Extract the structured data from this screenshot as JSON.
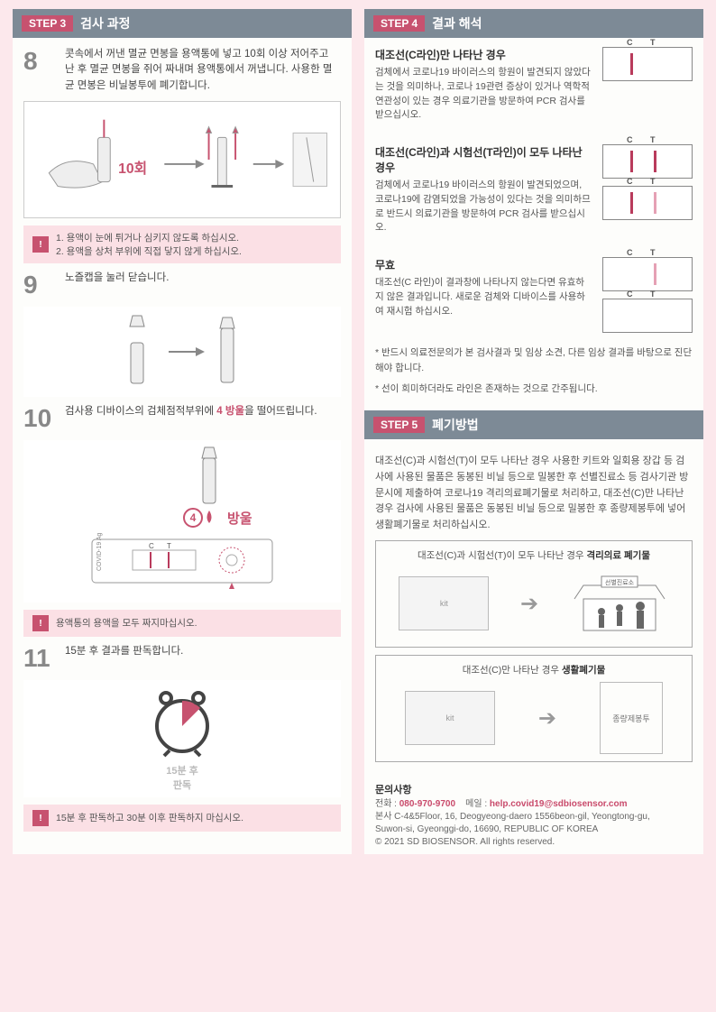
{
  "colors": {
    "accent": "#c7526f",
    "grayHdr": "#7d8a96",
    "lineRed": "#b93b5c",
    "linePink": "#e5a1b5",
    "warnBg": "#fbe0e5"
  },
  "left": {
    "step3": {
      "tag": "STEP 3",
      "title": "검사 과정"
    },
    "s8": {
      "num": "8",
      "text": "콧속에서 꺼낸 멸균 면봉을 용액통에 넣고 10회 이상 저어주고 난 후 멸균 면봉을 쥐어 짜내며 용액통에서 꺼냅니다. 사용한 멸균 면봉은 비닐봉투에 폐기합니다.",
      "illus_label": "10회"
    },
    "warn1_l1": "1. 용액이 눈에 튀거나 심키지 않도록 하십시오.",
    "warn1_l2": "2. 용액을 상처 부위에 직접 닿지 않게 하십시오.",
    "s9": {
      "num": "9",
      "text": "노즐캡을 눌러 닫습니다."
    },
    "s10": {
      "num": "10",
      "text_pre": "검사용 디바이스의 검체점적부위에 ",
      "text_red": "4 방울",
      "text_post": "을 떨어뜨립니다.",
      "drop_num": "4",
      "drop_word": "방울",
      "device_label": "COVID-19 Ag"
    },
    "warn2": "용액통의 용액을 모두 짜지마십시오.",
    "s11": {
      "num": "11",
      "text": "15분 후 결과를 판독합니다.",
      "clock_label": "15분 후\n판독"
    },
    "warn3": "15분 후 판독하고 30분 이후 판독하지 마십시오."
  },
  "right": {
    "step4": {
      "tag": "STEP 4",
      "title": "결과 해석"
    },
    "r1": {
      "title": "대조선(C라인)만 나타난 경우",
      "body": "검체에서 코로나19 바이러스의 항원이 발견되지 않았다는 것을 의미하나, 코로나 19관련 증상이 있거나 역학적 연관성이 있는 경우 의료기관을 방문하여 PCR 검사를 받으십시오.",
      "cassettes": [
        {
          "c": true,
          "t": false
        }
      ]
    },
    "r2": {
      "title": "대조선(C라인)과 시험선(T라인)이 모두 나타난 경우",
      "body": "검체에서 코로나19 바이러스의 항원이 발견되었으며, 코로나19에 감염되었을 가능성이 있다는 것을 의미하므로 반드시 의료기관을 방문하여 PCR 검사를 받으십시오.",
      "cassettes": [
        {
          "c": true,
          "t": true,
          "t_faint": false
        },
        {
          "c": true,
          "t": true,
          "t_faint": true
        }
      ]
    },
    "r3": {
      "title": "무효",
      "body": "대조선(C 라인)이 결과창에 나타나지 않는다면 유효하지 않은 결과입니다. 새로운 검체와 디바이스를 사용하여 재시험 하십시오.",
      "cassettes": [
        {
          "c": false,
          "t": true,
          "t_faint": true
        },
        {
          "c": false,
          "t": false
        }
      ]
    },
    "note1": "* 반드시 의료전문의가 본 검사결과 및 임상 소견, 다른 임상 결과를 바탕으로 진단해야 합니다.",
    "note2": "* 선이 희미하더라도 라인은 존재하는 것으로 간주됩니다.",
    "step5": {
      "tag": "STEP 5",
      "title": "폐기방법"
    },
    "disposal_body": "대조선(C)과 시험선(T)이 모두 나타난 경우 사용한 키트와 일회용 장갑 등 검사에 사용된 물품은 동봉된 비닐 등으로 밀봉한 후 선별진료소 등 검사기관 방문시에 제출하여 코로나19 격리의료폐기물로 처리하고, 대조선(C)만 나타난 경우 검사에 사용된 물품은 동봉된 비닐 등으로 밀봉한 후 종량제봉투에 넣어 생활폐기물로 처리하십시오.",
    "disp1_hdr_pre": "대조선(C)과 시험선(T)이 모두 나타난 경우 ",
    "disp1_hdr_b": "격리의료 폐기물",
    "disp1_dest": "선별진료소",
    "disp2_hdr_pre": "대조선(C)만 나타난 경우 ",
    "disp2_hdr_b": "생활폐기물",
    "disp2_dest": "종량제봉투",
    "contact_title": "문의사항",
    "contact_tel_lbl": "전화 : ",
    "contact_tel": "080-970-9700",
    "contact_mail_lbl": "메일 : ",
    "contact_mail": "help.covid19@sdbiosensor.com",
    "addr1": "본사  C-4&5Floor, 16, Deogyeong-daero 1556beon-gil, Yeongtong-gu,",
    "addr2": "Suwon-si, Gyeonggi-do, 16690, REPUBLIC OF KOREA",
    "copyright": "© 2021 SD BIOSENSOR. All rights reserved."
  }
}
